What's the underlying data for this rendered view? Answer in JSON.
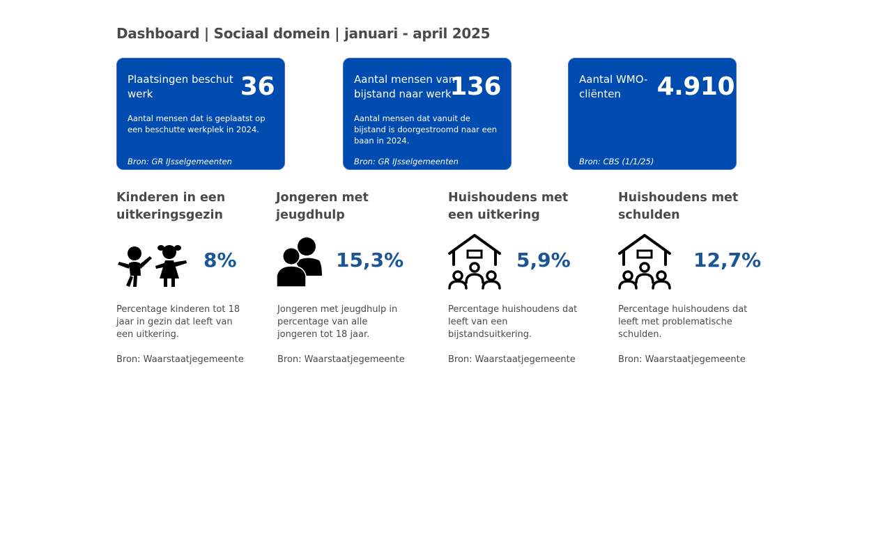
{
  "header": {
    "title": "Dashboard | Sociaal domein | januari - april 2025"
  },
  "colors": {
    "card_background": "#004baf",
    "accent_value": "#1a5596",
    "text": "#4a4a4a"
  },
  "cards": [
    {
      "label": "Plaatsingen beschut werk",
      "value": "36",
      "description": "Aantal mensen dat is geplaatst op een beschutte werkplek in 2024.",
      "source": "Bron: GR IJsselgemeenten"
    },
    {
      "label": "Aantal mensen van bijstand naar werk",
      "value": "136",
      "description": "Aantal mensen dat vanuit de bijstand is doorgestroomd naar een baan in 2024.",
      "source": "Bron: GR IJsselgemeenten"
    },
    {
      "label": "Aantal WMO-cliënten",
      "value": "4.910",
      "description": "",
      "source": "Bron: CBS (1/1/25)"
    }
  ],
  "stats": [
    {
      "heading": "Kinderen in een uitkeringsgezin",
      "icon": "children-icon",
      "value": "8%",
      "description": "Percentage kinderen tot 18 jaar in gezin dat leeft van een uitkering.",
      "source": "Bron: Waarstaatjegemeente"
    },
    {
      "heading": "Jongeren met jeugdhulp",
      "icon": "people-icon",
      "value": "15,3%",
      "description": "Jongeren met jeugdhulp in percentage van alle jongeren tot 18 jaar.",
      "source": "Bron: Waarstaatjegemeente"
    },
    {
      "heading": "Huishoudens met een uitkering",
      "icon": "household-icon",
      "value": "5,9%",
      "description": "Percentage huishoudens dat leeft van een bijstandsuitkering.",
      "source": "Bron: Waarstaatjegemeente"
    },
    {
      "heading": "Huishoudens met schulden",
      "icon": "household-icon",
      "value": "12,7%",
      "description": "Percentage huishoudens dat leeft met problematische schulden.",
      "source": "Bron: Waarstaatjegemeente"
    }
  ]
}
